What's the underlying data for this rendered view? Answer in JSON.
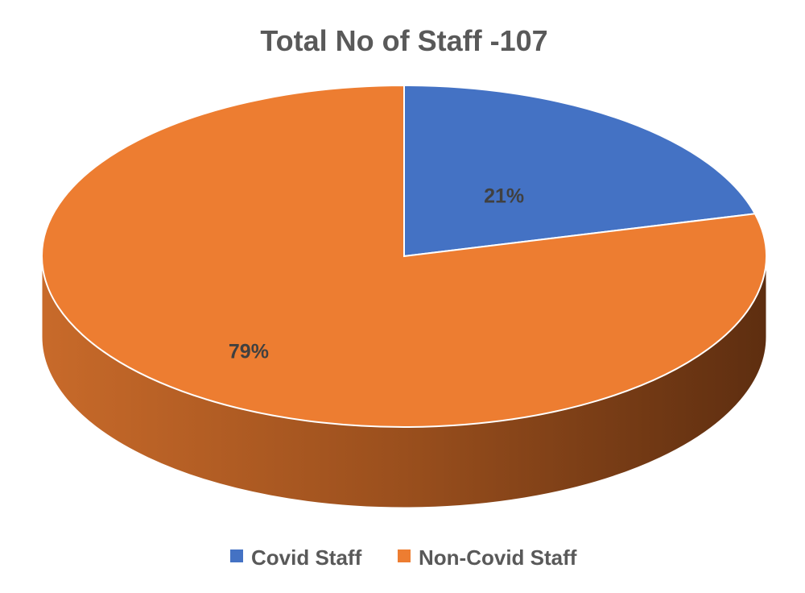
{
  "chart_data": {
    "type": "pie",
    "title": "Total No of Staff -107",
    "categories": [
      "Covid Staff",
      "Non-Covid Staff"
    ],
    "values": [
      21,
      79
    ],
    "data_labels": [
      "21%",
      "79%"
    ],
    "colors": [
      "#4472C4",
      "#ED7D31"
    ],
    "legend": {
      "placement": "bottom",
      "entries": [
        "Covid Staff",
        "Non-Covid Staff"
      ]
    },
    "style": "3d"
  }
}
